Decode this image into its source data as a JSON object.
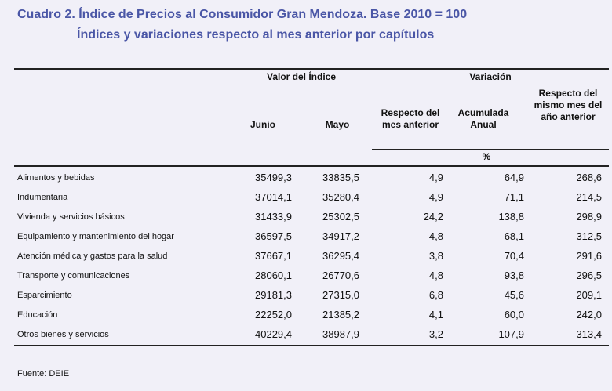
{
  "title": [
    "Cuadro 2. Índice de Precios al Consumidor Gran Mendoza. Base 2010 = 100",
    "Índices y variaciones respecto al mes anterior por capítulos"
  ],
  "table": {
    "groups": [
      "Valor del Índice",
      "Variación"
    ],
    "columns": [
      "Junio",
      "Mayo",
      "Respecto del mes anterior",
      "Acumulada Anual",
      "Respecto del mismo mes del año anterior"
    ],
    "unit": "%",
    "rows": [
      [
        "Alimentos y bebidas",
        "35499,3",
        "33835,5",
        "4,9",
        "64,9",
        "268,6"
      ],
      [
        "Indumentaria",
        "37014,1",
        "35280,4",
        "4,9",
        "71,1",
        "214,5"
      ],
      [
        "Vivienda y servicios básicos",
        "31433,9",
        "25302,5",
        "24,2",
        "138,8",
        "298,9"
      ],
      [
        "Equipamiento y mantenimiento del hogar",
        "36597,5",
        "34917,2",
        "4,8",
        "68,1",
        "312,5"
      ],
      [
        "Atención médica y gastos para la salud",
        "37667,1",
        "36295,4",
        "3,8",
        "70,4",
        "291,6"
      ],
      [
        "Transporte y comunicaciones",
        "28060,1",
        "26770,6",
        "4,8",
        "93,8",
        "296,5"
      ],
      [
        "Esparcimiento",
        "29181,3",
        "27315,0",
        "6,8",
        "45,6",
        "209,1"
      ],
      [
        "Educación",
        "22252,0",
        "21385,2",
        "4,1",
        "60,0",
        "242,0"
      ],
      [
        "Otros bienes y servicios",
        "40229,4",
        "38987,9",
        "3,2",
        "107,9",
        "313,4"
      ]
    ]
  },
  "source": "Fuente: DEIE"
}
